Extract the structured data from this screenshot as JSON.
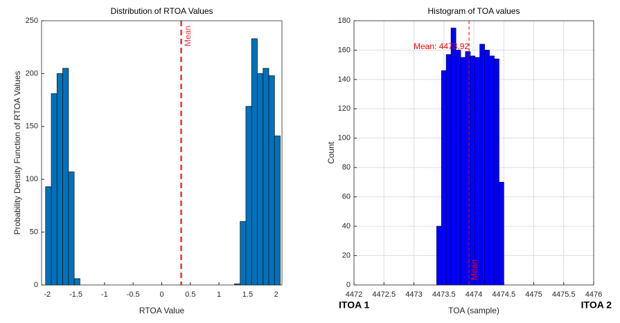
{
  "chart_data": [
    {
      "type": "histogram",
      "title": "Distribution of RTOA Values",
      "xlabel": "RTOA Value",
      "ylabel": "Probability Density Function of RTOA Values",
      "bins": [
        -2.03,
        -1.93,
        -1.83,
        -1.73,
        -1.63,
        -1.53,
        -1.43,
        -1.33,
        -1.23,
        -1.13,
        -1.03,
        -0.93,
        -0.83,
        -0.73,
        -0.63,
        -0.53,
        -0.43,
        -0.33,
        -0.23,
        -0.13,
        -0.03,
        0.07,
        0.17,
        0.27,
        0.37,
        0.47,
        0.57,
        0.67,
        0.77,
        0.87,
        0.97,
        1.07,
        1.17,
        1.27,
        1.37,
        1.47,
        1.57,
        1.67,
        1.77,
        1.87,
        1.97,
        2.07
      ],
      "values": [
        93,
        181,
        200,
        205,
        107,
        6,
        0,
        0,
        0,
        0,
        0,
        0,
        0,
        0,
        0,
        0,
        0,
        0,
        0,
        0,
        0,
        0,
        0,
        0,
        0,
        0,
        0,
        0,
        0,
        0,
        0,
        0,
        0,
        1,
        60,
        169,
        233,
        200,
        205,
        198,
        141
      ],
      "color": "#0072bd",
      "edge_color": "#1a1a1a",
      "xlim": [
        -2.1,
        2.1
      ],
      "xticks": [
        -2,
        -1.5,
        -1,
        -0.5,
        0,
        0.5,
        1,
        1.5,
        2
      ],
      "ylim": [
        0,
        250
      ],
      "yticks": [
        0,
        50,
        100,
        150,
        200,
        250
      ],
      "grid": false,
      "mean": {
        "value": 0.34,
        "label": "Mean",
        "color": "#e8333a"
      }
    },
    {
      "type": "histogram",
      "title": "Histogram of TOA values",
      "xlabel": "TOA (sample)",
      "ylabel": "Count",
      "bins": [
        4473.38,
        4473.46,
        4473.54,
        4473.62,
        4473.7,
        4473.78,
        4473.86,
        4473.94,
        4474.02,
        4474.1,
        4474.18,
        4474.26,
        4474.34,
        4474.42,
        4474.5
      ],
      "values": [
        40,
        146,
        157,
        175,
        160,
        155,
        159,
        156,
        155,
        164,
        160,
        156,
        154,
        70
      ],
      "color": "#0000ff",
      "edge_color": "#000066",
      "xlim": [
        4472,
        4476
      ],
      "xticks": [
        4472,
        4472.5,
        4473,
        4473.5,
        4474,
        4474.5,
        4475,
        4475.5,
        4476
      ],
      "ylim": [
        0,
        180
      ],
      "yticks": [
        0,
        20,
        40,
        60,
        80,
        100,
        120,
        140,
        160,
        180
      ],
      "grid": true,
      "mean": {
        "value": 4473.92,
        "label": "Mean: 4473.92",
        "bottom_label": "Mean",
        "color": "#ff0000"
      },
      "corner_labels": [
        "ITOA 1",
        "ITOA 2"
      ]
    }
  ]
}
